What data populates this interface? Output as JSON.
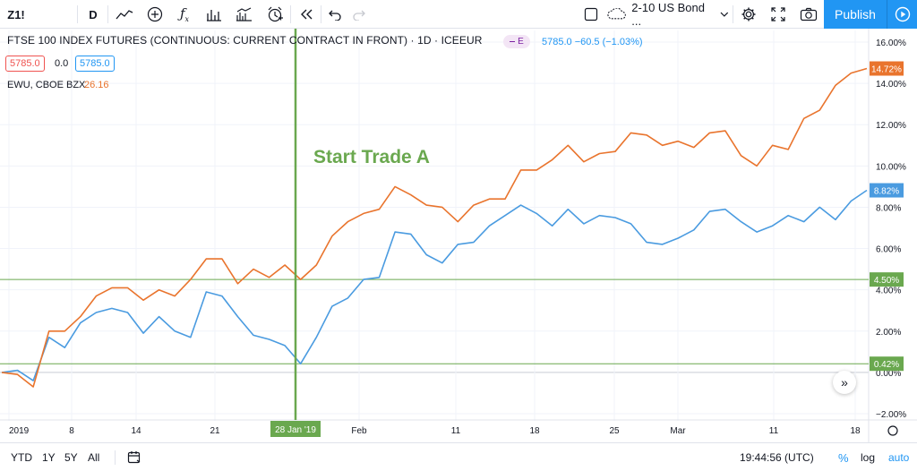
{
  "toolbar": {
    "symbol": "Z1!",
    "interval": "D",
    "compare_value": "2-10 US Bond ...",
    "publish_label": "Publish"
  },
  "legend": {
    "title": "FTSE 100 INDEX FUTURES (CONTINUOUS: CURRENT CONTRACT IN FRONT) · 1D · ICEEUR",
    "badge": "E",
    "values": "5785.0  −60.5 (−1.03%)",
    "box_left": "5785.0",
    "mid_value": "0.0",
    "box_right": "5785.0",
    "compare_symbol": "EWU, CBOE BZX",
    "compare_value": "26.16"
  },
  "annotation": {
    "text": "Start Trade A",
    "date_label": "28 Jan '19",
    "color": "#6aa84f"
  },
  "bottom": {
    "ranges": [
      "YTD",
      "1Y",
      "5Y",
      "All"
    ],
    "clock": "19:44:56 (UTC)",
    "percent": "%",
    "log": "log",
    "auto": "auto"
  },
  "colors": {
    "ftse": "#4a9be0",
    "ewu": "#e9742d",
    "marker": "#6aa84f",
    "accent": "#2196f3"
  },
  "chart_data": {
    "type": "line",
    "x_labels": [
      "2019",
      "8",
      "14",
      "21",
      "28 Jan '19",
      "Feb",
      "11",
      "18",
      "25",
      "Mar",
      "11",
      "18"
    ],
    "ylim": [
      -2.0,
      16.0
    ],
    "y_unit": "%",
    "y_ticks": [
      "16.00%",
      "14.00%",
      "12.00%",
      "10.00%",
      "8.00%",
      "6.00%",
      "4.00%",
      "2.00%",
      "0.00%",
      "−2.00%"
    ],
    "horizontal_lines": [
      {
        "value": 4.5,
        "label": "4.50%"
      },
      {
        "value": 0.42,
        "label": "0.42%"
      }
    ],
    "last_value_labels": [
      {
        "series": "EWU, CBOE BZX",
        "label": "14.72%"
      },
      {
        "series": "FTSE 100 INDEX FUTURES",
        "label": "8.82%"
      }
    ],
    "series": [
      {
        "name": "FTSE 100 INDEX FUTURES",
        "color": "#4a9be0",
        "values": [
          0.0,
          0.1,
          -0.4,
          1.7,
          1.2,
          2.4,
          2.9,
          3.1,
          2.9,
          1.9,
          2.7,
          2.0,
          1.7,
          3.9,
          3.7,
          2.7,
          1.8,
          1.6,
          1.3,
          0.42,
          1.7,
          3.2,
          3.6,
          4.5,
          4.6,
          6.8,
          6.7,
          5.7,
          5.3,
          6.2,
          6.3,
          7.1,
          7.6,
          8.1,
          7.7,
          7.1,
          7.9,
          7.2,
          7.6,
          7.5,
          7.2,
          6.3,
          6.2,
          6.5,
          6.9,
          7.8,
          7.9,
          7.3,
          6.8,
          7.1,
          7.6,
          7.3,
          8.0,
          7.4,
          8.3,
          8.82
        ]
      },
      {
        "name": "EWU, CBOE BZX",
        "color": "#e9742d",
        "values": [
          0.0,
          -0.1,
          -0.7,
          2.0,
          2.0,
          2.7,
          3.7,
          4.1,
          4.1,
          3.5,
          4.0,
          3.7,
          4.5,
          5.5,
          5.5,
          4.3,
          5.0,
          4.6,
          5.2,
          4.5,
          5.2,
          6.6,
          7.3,
          7.7,
          7.9,
          9.0,
          8.6,
          8.1,
          8.0,
          7.3,
          8.1,
          8.4,
          8.4,
          9.8,
          9.8,
          10.3,
          11.0,
          10.2,
          10.6,
          10.7,
          11.6,
          11.5,
          11.0,
          11.2,
          10.9,
          11.6,
          11.7,
          10.5,
          10.0,
          11.0,
          10.8,
          12.3,
          12.7,
          13.9,
          14.5,
          14.72
        ]
      }
    ]
  }
}
